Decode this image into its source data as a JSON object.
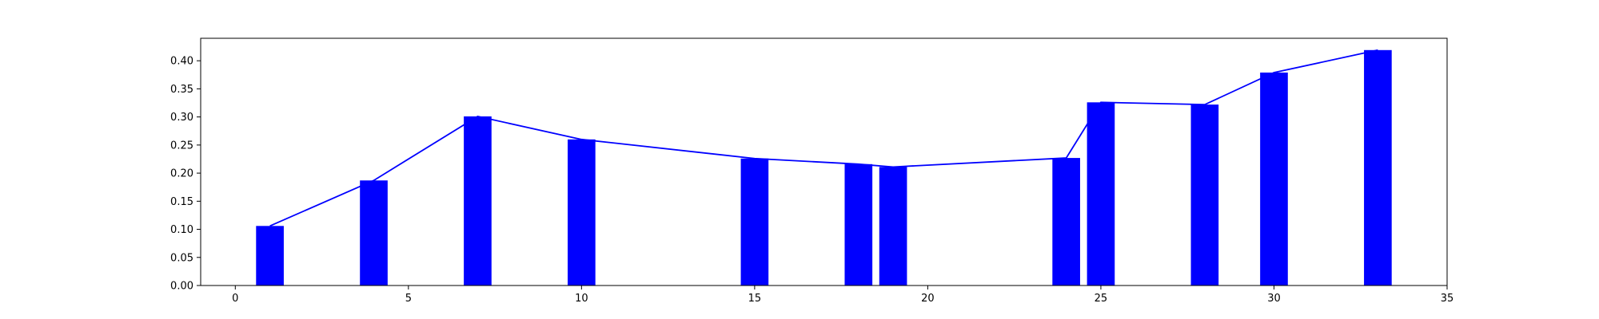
{
  "chart_data": {
    "type": "bar",
    "title": "",
    "xlabel": "",
    "ylabel": "",
    "xlim": [
      -1,
      35
    ],
    "ylim": [
      0,
      0.44
    ],
    "x_ticks": [
      0,
      5,
      10,
      15,
      20,
      25,
      30,
      35
    ],
    "y_ticks": [
      0.0,
      0.05,
      0.1,
      0.15,
      0.2,
      0.25,
      0.3,
      0.35,
      0.4
    ],
    "x_tick_labels": [
      "0",
      "5",
      "10",
      "15",
      "20",
      "25",
      "30",
      "35"
    ],
    "y_tick_labels": [
      "0.00",
      "0.05",
      "0.10",
      "0.15",
      "0.20",
      "0.25",
      "0.30",
      "0.35",
      "0.40"
    ],
    "grid": false,
    "legend": null,
    "bar_width": 0.8,
    "series": [
      {
        "type": "bar",
        "color": "#0000ff",
        "x": [
          1,
          4,
          7,
          10,
          15,
          18,
          19,
          24,
          25,
          28,
          30,
          33
        ],
        "values": [
          0.106,
          0.187,
          0.301,
          0.26,
          0.226,
          0.216,
          0.211,
          0.227,
          0.326,
          0.322,
          0.379,
          0.419
        ]
      },
      {
        "type": "line",
        "color": "#0000ff",
        "x": [
          1,
          4,
          7,
          10,
          15,
          18,
          19,
          24,
          25,
          28,
          30,
          33
        ],
        "values": [
          0.106,
          0.187,
          0.301,
          0.26,
          0.226,
          0.216,
          0.211,
          0.227,
          0.326,
          0.322,
          0.379,
          0.419
        ]
      }
    ]
  }
}
